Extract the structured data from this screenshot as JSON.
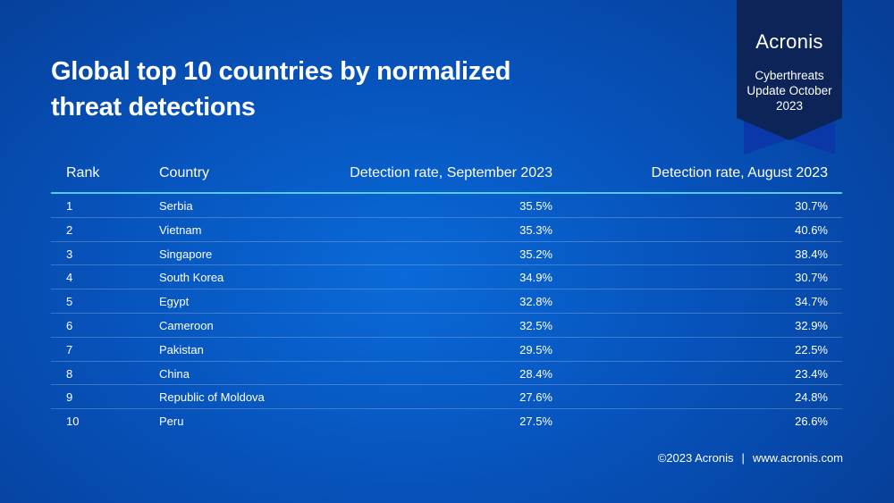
{
  "title": "Global top 10 countries by normalized threat detections",
  "badge": {
    "logo": "Acronis",
    "subtitle": "Cyberthreats Update October 2023"
  },
  "table": {
    "headers": {
      "rank": "Rank",
      "country": "Country",
      "september": "Detection rate, September 2023",
      "august": "Detection rate, August 2023"
    },
    "rows": [
      {
        "rank": "1",
        "country": "Serbia",
        "september": "35.5%",
        "august": "30.7%"
      },
      {
        "rank": "2",
        "country": "Vietnam",
        "september": "35.3%",
        "august": "40.6%"
      },
      {
        "rank": "3",
        "country": "Singapore",
        "september": "35.2%",
        "august": "38.4%"
      },
      {
        "rank": "4",
        "country": "South Korea",
        "september": "34.9%",
        "august": "30.7%"
      },
      {
        "rank": "5",
        "country": "Egypt",
        "september": "32.8%",
        "august": "34.7%"
      },
      {
        "rank": "6",
        "country": "Cameroon",
        "september": "32.5%",
        "august": "32.9%"
      },
      {
        "rank": "7",
        "country": "Pakistan",
        "september": "29.5%",
        "august": "22.5%"
      },
      {
        "rank": "8",
        "country": "China",
        "september": "28.4%",
        "august": "23.4%"
      },
      {
        "rank": "9",
        "country": "Republic of Moldova",
        "september": "27.6%",
        "august": "24.8%"
      },
      {
        "rank": "10",
        "country": "Peru",
        "september": "27.5%",
        "august": "26.6%"
      }
    ]
  },
  "footer": {
    "copyright": "©2023 Acronis",
    "separator": "|",
    "website": "www.acronis.com"
  },
  "colors": {
    "background": "#0754bd",
    "badge": "#0c2458",
    "header_rule": "#5ac8f0"
  }
}
